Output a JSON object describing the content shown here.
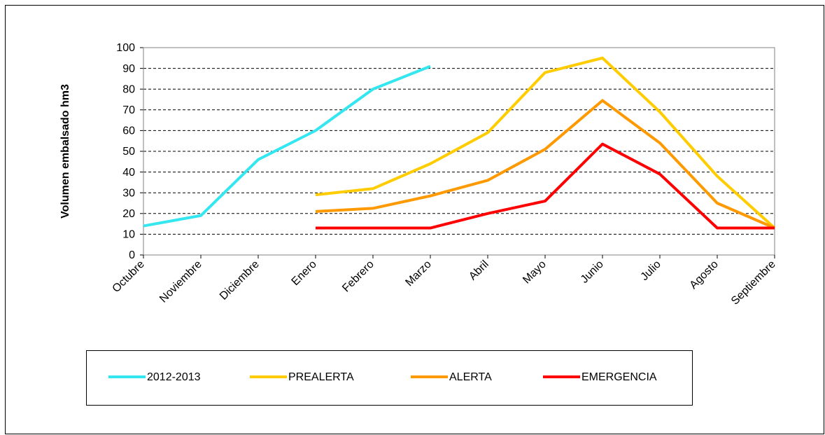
{
  "chart_data": {
    "type": "line",
    "y_label": "Volumen embalsado hm3",
    "categories": [
      "Octubre",
      "Noviembre",
      "Diciembre",
      "Enero",
      "Febrero",
      "Marzo",
      "Abril",
      "Mayo",
      "Junio",
      "Julio",
      "Agosto",
      "Septiembre"
    ],
    "series": [
      {
        "name": "2012-2013",
        "color": "#33e6f0",
        "values": [
          14,
          19,
          46,
          60,
          80,
          91,
          null,
          null,
          null,
          null,
          null,
          null
        ]
      },
      {
        "name": "PREALERTA",
        "color": "#ffcc00",
        "values": [
          null,
          null,
          null,
          29,
          32,
          44,
          59,
          88,
          95,
          69,
          38,
          13
        ]
      },
      {
        "name": "ALERTA",
        "color": "#ff9900",
        "values": [
          null,
          null,
          null,
          21,
          22.5,
          28.5,
          36,
          51,
          74.5,
          54,
          25,
          13
        ]
      },
      {
        "name": "EMERGENCIA",
        "color": "#ff0000",
        "values": [
          null,
          null,
          null,
          13,
          13,
          13,
          20,
          26,
          53.5,
          39,
          13,
          13
        ]
      }
    ],
    "ylim": [
      0,
      100
    ],
    "yticks": [
      0,
      10,
      20,
      30,
      40,
      50,
      60,
      70,
      80,
      90,
      100
    ],
    "grid": true,
    "legend": "bottom"
  }
}
